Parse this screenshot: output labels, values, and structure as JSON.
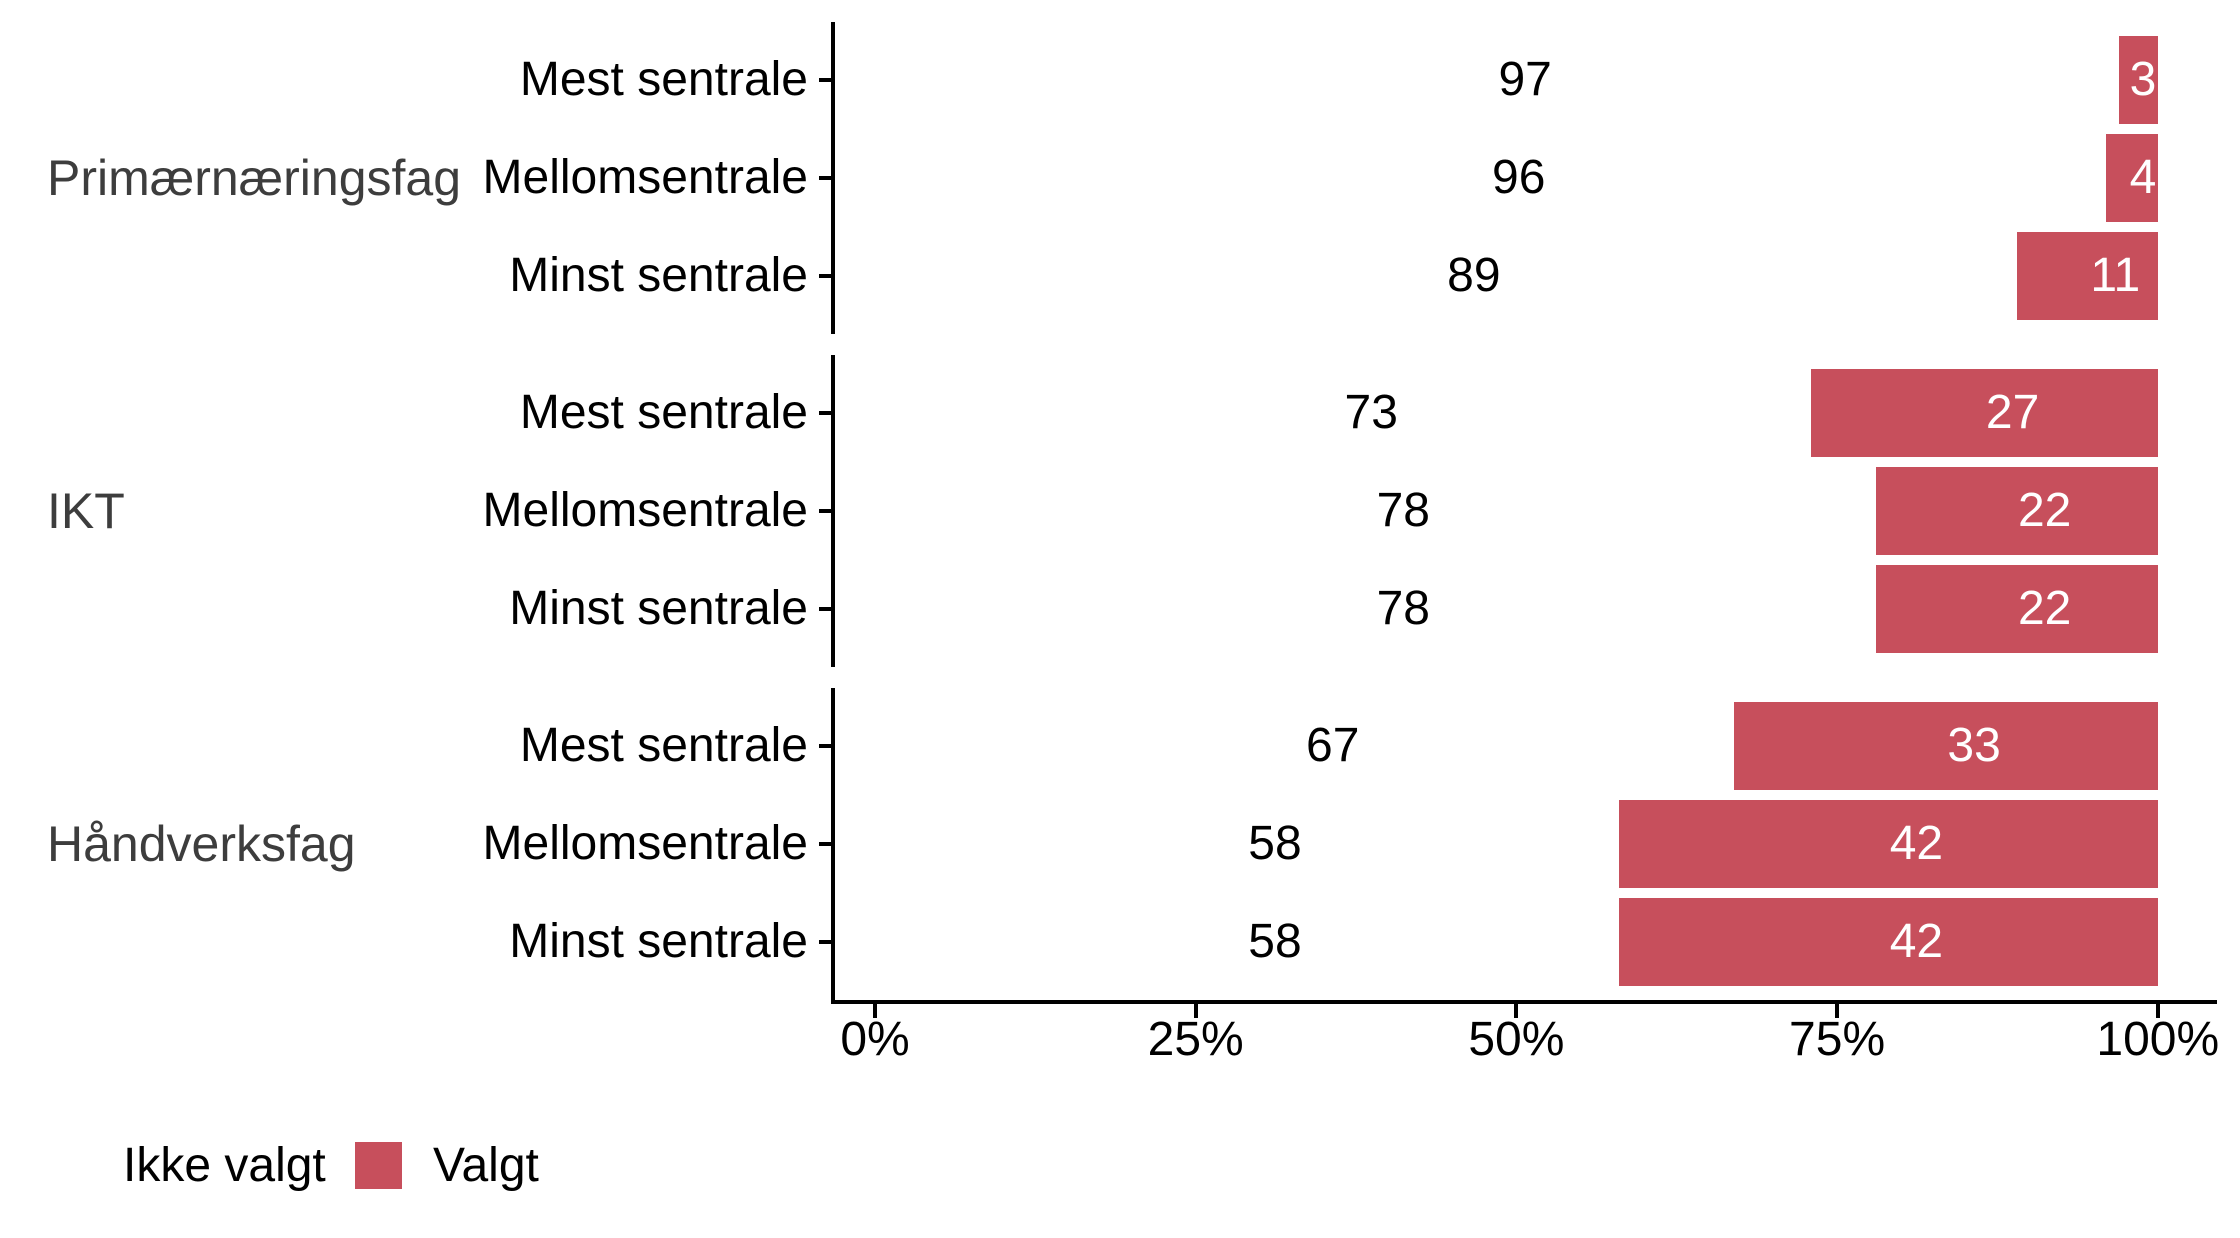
{
  "chart_data": {
    "type": "bar",
    "orientation": "horizontal-stacked",
    "title": "",
    "x_axis": {
      "range": [
        0,
        100
      ],
      "tick_values": [
        0,
        25,
        50,
        75,
        100
      ],
      "tick_labels": [
        "0%",
        "25%",
        "50%",
        "75%",
        "100%"
      ]
    },
    "colors": {
      "valgt": "#C74F5C",
      "ikke_valgt": "#FFFFFF",
      "axis": "#000000",
      "facet_label": "#3d3d3d"
    },
    "legend": {
      "position": "bottom-left",
      "items": [
        {
          "label": "Ikke valgt",
          "color": "#FFFFFF"
        },
        {
          "label": "Valgt",
          "color": "#C74F5C"
        }
      ]
    },
    "groups": [
      {
        "label": "Primærnæringsfag",
        "rows": [
          {
            "label": "Mest sentrale",
            "ikke_valgt": 97,
            "valgt": 3
          },
          {
            "label": "Mellomsentrale",
            "ikke_valgt": 96,
            "valgt": 4
          },
          {
            "label": "Minst sentrale",
            "ikke_valgt": 89,
            "valgt": 11
          }
        ]
      },
      {
        "label": "IKT",
        "rows": [
          {
            "label": "Mest sentrale",
            "ikke_valgt": 73,
            "valgt": 27
          },
          {
            "label": "Mellomsentrale",
            "ikke_valgt": 78,
            "valgt": 22
          },
          {
            "label": "Minst sentrale",
            "ikke_valgt": 78,
            "valgt": 22
          }
        ]
      },
      {
        "label": "Håndverksfag",
        "rows": [
          {
            "label": "Mest sentrale",
            "ikke_valgt": 67,
            "valgt": 33
          },
          {
            "label": "Mellomsentrale",
            "ikke_valgt": 58,
            "valgt": 42
          },
          {
            "label": "Minst sentrale",
            "ikke_valgt": 58,
            "valgt": 42
          }
        ]
      }
    ]
  }
}
